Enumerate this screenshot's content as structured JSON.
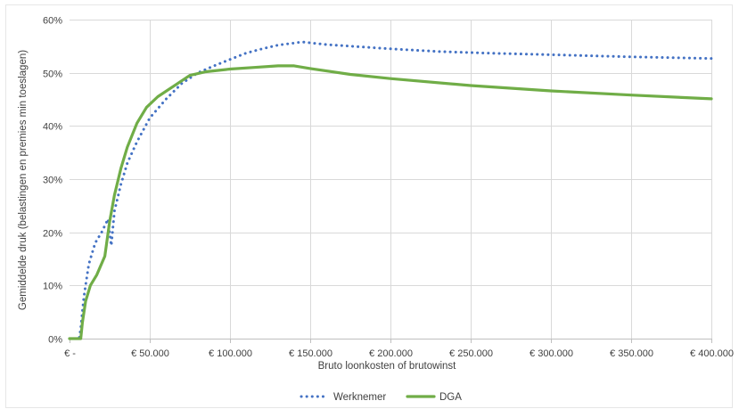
{
  "chart_data": {
    "type": "line",
    "title": "",
    "xlabel": "Bruto loonkosten of brutowinst",
    "ylabel": "Gemiddelde druk (belastingen en premies min toeslagen)",
    "xlim": [
      0,
      400000
    ],
    "ylim": [
      0,
      0.6
    ],
    "x_ticks": [
      0,
      50000,
      100000,
      150000,
      200000,
      250000,
      300000,
      350000,
      400000
    ],
    "x_tick_labels": [
      "€ -",
      "€ 50.000",
      "€ 100.000",
      "€ 150.000",
      "€ 200.000",
      "€ 250.000",
      "€ 300.000",
      "€ 350.000",
      "€ 400.000"
    ],
    "y_ticks": [
      0,
      0.1,
      0.2,
      0.3,
      0.4,
      0.5,
      0.6
    ],
    "y_tick_labels": [
      "0%",
      "10%",
      "20%",
      "30%",
      "40%",
      "50%",
      "60%"
    ],
    "grid": true,
    "legend_position": "bottom",
    "series": [
      {
        "name": "Werknemer",
        "color": "#4472c4",
        "style": "dotted",
        "x": [
          0,
          6000,
          7000,
          9000,
          12000,
          16000,
          20000,
          24000,
          26000,
          28000,
          32000,
          36000,
          42000,
          50000,
          60000,
          70000,
          80000,
          90000,
          100000,
          110000,
          120000,
          130000,
          140000,
          145000,
          160000,
          180000,
          200000,
          230000,
          260000,
          300000,
          350000,
          400000
        ],
        "y": [
          0,
          0,
          0.02,
          0.08,
          0.14,
          0.18,
          0.2,
          0.225,
          0.175,
          0.24,
          0.29,
          0.33,
          0.37,
          0.415,
          0.45,
          0.48,
          0.5,
          0.513,
          0.525,
          0.537,
          0.545,
          0.552,
          0.556,
          0.558,
          0.553,
          0.549,
          0.545,
          0.54,
          0.537,
          0.534,
          0.53,
          0.527
        ]
      },
      {
        "name": "DGA",
        "color": "#70ad47",
        "style": "solid",
        "x": [
          0,
          7000,
          8000,
          10000,
          13000,
          17000,
          22000,
          25000,
          28000,
          32000,
          36000,
          42000,
          48000,
          55000,
          65000,
          75000,
          85000,
          100000,
          115000,
          130000,
          140000,
          150000,
          175000,
          200000,
          250000,
          300000,
          350000,
          400000
        ],
        "y": [
          0,
          0,
          0.03,
          0.07,
          0.1,
          0.12,
          0.155,
          0.22,
          0.27,
          0.32,
          0.36,
          0.405,
          0.435,
          0.455,
          0.475,
          0.495,
          0.502,
          0.507,
          0.51,
          0.513,
          0.513,
          0.508,
          0.497,
          0.489,
          0.476,
          0.466,
          0.458,
          0.451
        ]
      }
    ]
  }
}
